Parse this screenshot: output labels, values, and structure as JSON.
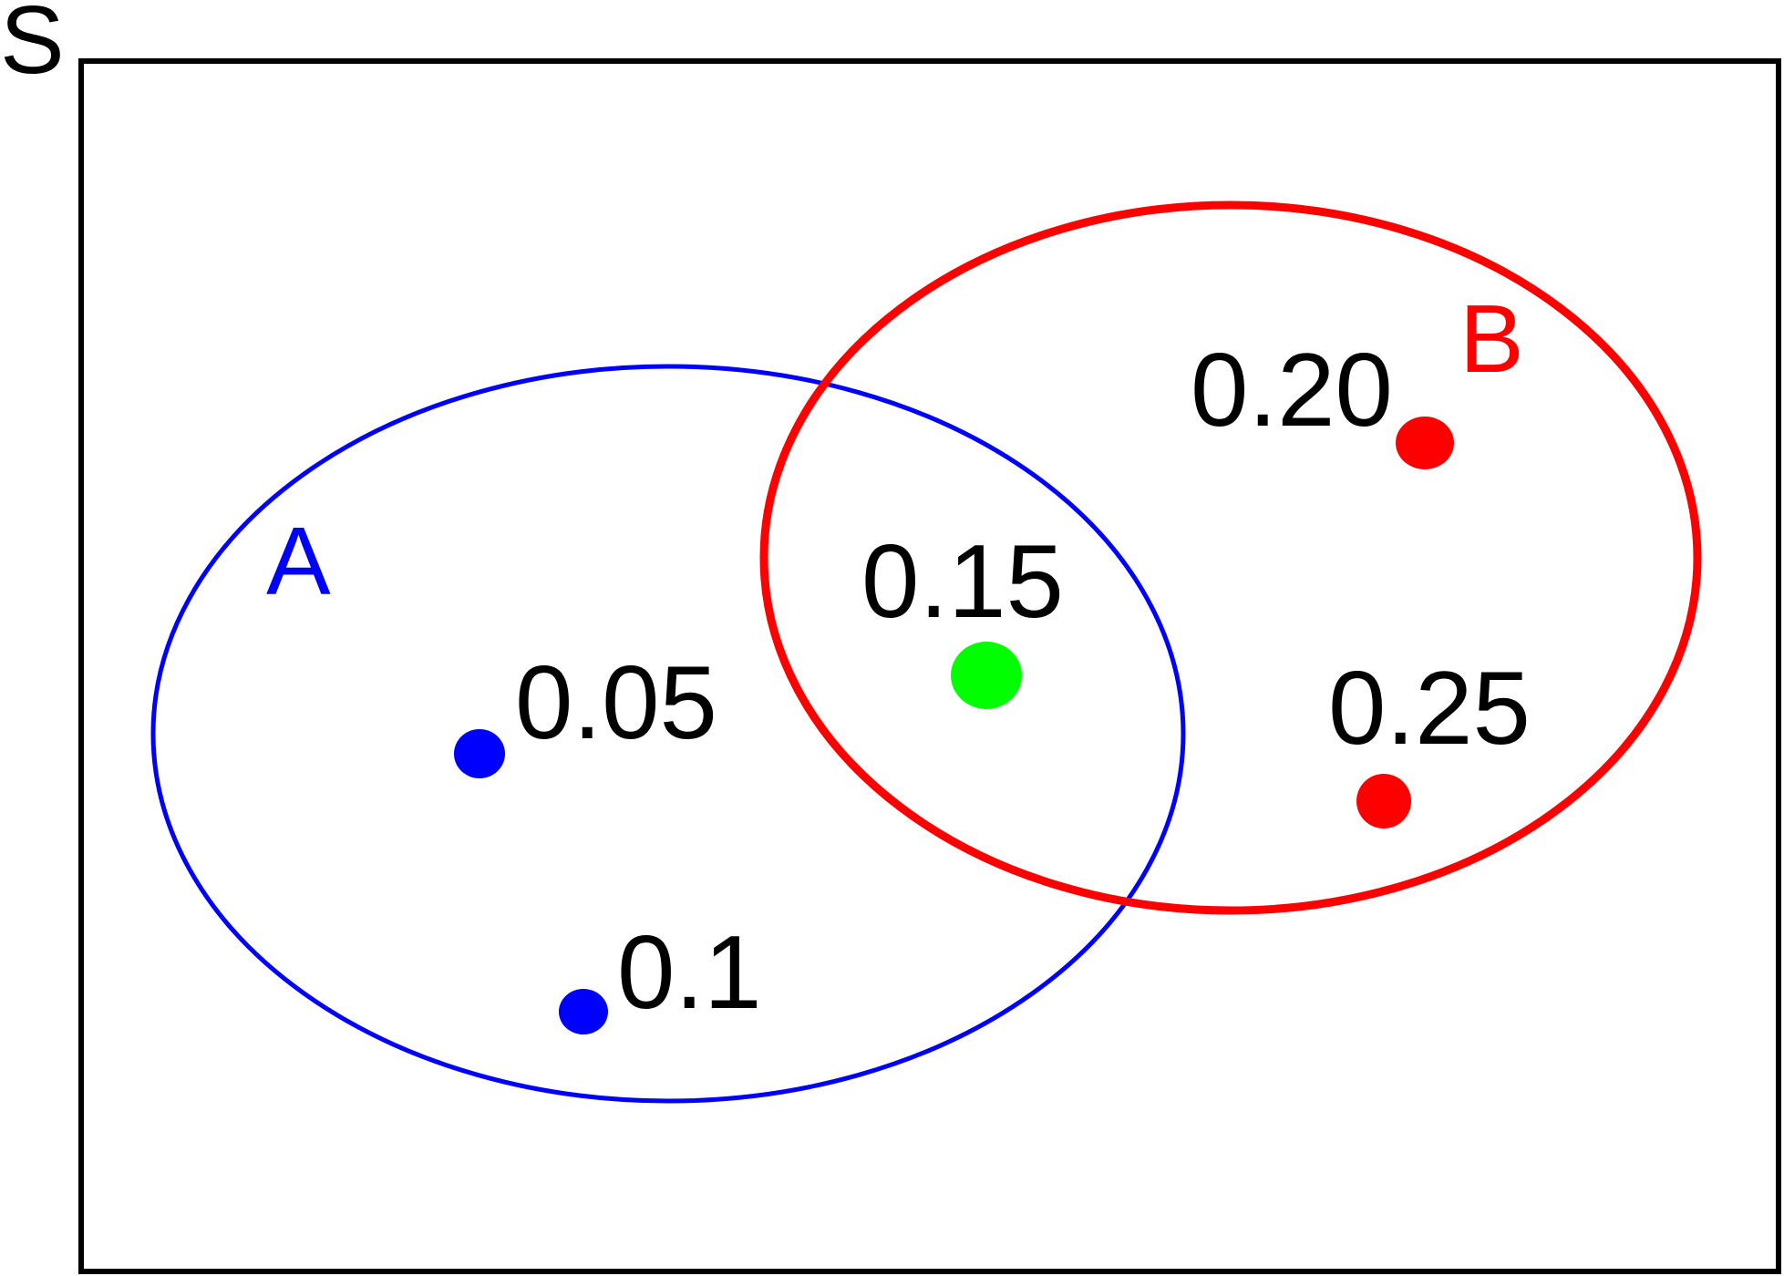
{
  "universe": {
    "label": "S",
    "color": "#000000"
  },
  "sets": [
    {
      "id": "A",
      "label": "A",
      "color": "#0000ff"
    },
    {
      "id": "B",
      "label": "B",
      "color": "#ff0000"
    }
  ],
  "outcomes": [
    {
      "id": "a1",
      "region": "A only",
      "probability": "0.05",
      "color": "#0000ff"
    },
    {
      "id": "a2",
      "region": "A only",
      "probability": "0.1",
      "color": "#0000ff"
    },
    {
      "id": "ab",
      "region": "A and B",
      "probability": "0.15",
      "color": "#00ff00"
    },
    {
      "id": "b1",
      "region": "B only",
      "probability": "0.20",
      "color": "#ff0000"
    },
    {
      "id": "b2",
      "region": "B only",
      "probability": "0.25",
      "color": "#ff0000"
    }
  ]
}
